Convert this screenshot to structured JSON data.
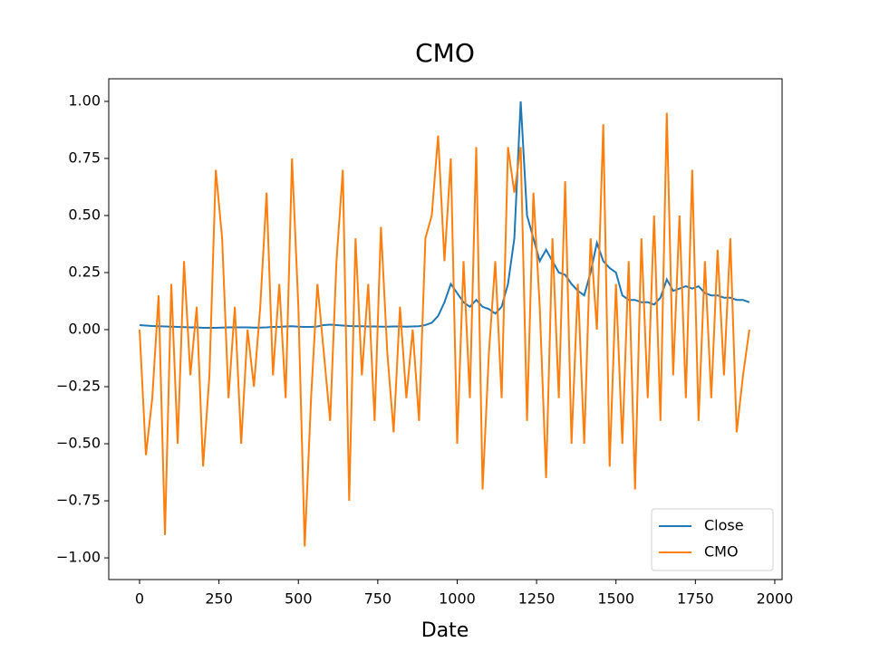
{
  "chart_data": {
    "type": "line",
    "title": "CMO",
    "x_label": "Date",
    "x": [
      0,
      20,
      40,
      60,
      80,
      100,
      120,
      140,
      160,
      180,
      200,
      220,
      240,
      260,
      280,
      300,
      320,
      340,
      360,
      380,
      400,
      420,
      440,
      460,
      480,
      500,
      520,
      540,
      560,
      580,
      600,
      620,
      640,
      660,
      680,
      700,
      720,
      740,
      760,
      780,
      800,
      820,
      840,
      860,
      880,
      900,
      920,
      940,
      960,
      980,
      1000,
      1020,
      1040,
      1060,
      1080,
      1100,
      1120,
      1140,
      1160,
      1180,
      1200,
      1220,
      1240,
      1260,
      1280,
      1300,
      1320,
      1340,
      1360,
      1380,
      1400,
      1420,
      1440,
      1460,
      1480,
      1500,
      1520,
      1540,
      1560,
      1580,
      1600,
      1620,
      1640,
      1660,
      1680,
      1700,
      1720,
      1740,
      1760,
      1780,
      1800,
      1820,
      1840,
      1860,
      1880,
      1900,
      1920
    ],
    "series": [
      {
        "name": "Close",
        "color": "#1f77b4",
        "values": [
          0.02,
          0.018,
          0.016,
          0.015,
          0.014,
          0.013,
          0.012,
          0.011,
          0.01,
          0.01,
          0.008,
          0.008,
          0.008,
          0.009,
          0.01,
          0.01,
          0.01,
          0.01,
          0.009,
          0.009,
          0.01,
          0.012,
          0.012,
          0.014,
          0.015,
          0.013,
          0.012,
          0.012,
          0.014,
          0.02,
          0.022,
          0.02,
          0.018,
          0.016,
          0.015,
          0.015,
          0.014,
          0.014,
          0.013,
          0.013,
          0.014,
          0.014,
          0.013,
          0.014,
          0.015,
          0.02,
          0.03,
          0.06,
          0.12,
          0.2,
          0.16,
          0.12,
          0.1,
          0.13,
          0.1,
          0.09,
          0.07,
          0.1,
          0.2,
          0.4,
          1.0,
          0.5,
          0.4,
          0.3,
          0.35,
          0.3,
          0.25,
          0.24,
          0.2,
          0.17,
          0.15,
          0.25,
          0.38,
          0.3,
          0.27,
          0.25,
          0.15,
          0.13,
          0.13,
          0.12,
          0.12,
          0.11,
          0.14,
          0.22,
          0.17,
          0.18,
          0.19,
          0.18,
          0.19,
          0.16,
          0.15,
          0.15,
          0.14,
          0.14,
          0.13,
          0.13,
          0.12
        ]
      },
      {
        "name": "CMO",
        "color": "#ff7f0e",
        "values": [
          0.0,
          -0.55,
          -0.3,
          0.15,
          -0.9,
          0.2,
          -0.5,
          0.3,
          -0.2,
          0.1,
          -0.6,
          -0.2,
          0.7,
          0.4,
          -0.3,
          0.1,
          -0.5,
          0.0,
          -0.25,
          0.1,
          0.6,
          -0.2,
          0.2,
          -0.3,
          0.75,
          0.1,
          -0.95,
          -0.3,
          0.2,
          -0.1,
          -0.4,
          0.3,
          0.7,
          -0.75,
          0.4,
          -0.2,
          0.2,
          -0.4,
          0.45,
          -0.1,
          -0.45,
          0.1,
          -0.3,
          0.0,
          -0.4,
          0.4,
          0.5,
          0.85,
          0.3,
          0.75,
          -0.5,
          0.3,
          -0.3,
          0.8,
          -0.7,
          -0.1,
          0.3,
          -0.3,
          0.8,
          0.6,
          0.8,
          -0.4,
          0.6,
          0.1,
          -0.65,
          0.4,
          -0.3,
          0.65,
          -0.5,
          0.2,
          -0.5,
          0.4,
          0.0,
          0.9,
          -0.6,
          0.2,
          -0.5,
          0.3,
          -0.7,
          0.4,
          -0.3,
          0.5,
          -0.4,
          0.95,
          -0.2,
          0.5,
          -0.3,
          0.7,
          -0.4,
          0.3,
          -0.3,
          0.35,
          -0.2,
          0.4,
          -0.45,
          -0.2,
          0.0
        ]
      }
    ],
    "xlim": [
      -97,
      2023
    ],
    "ylim": [
      -1.095,
      1.099
    ],
    "xticks": [
      0,
      250,
      500,
      750,
      1000,
      1250,
      1500,
      1750,
      2000
    ],
    "yticks": [
      {
        "value": -1,
        "label": "−1.00"
      },
      {
        "value": -0.75,
        "label": "−0.75"
      },
      {
        "value": -0.5,
        "label": "−0.50"
      },
      {
        "value": -0.25,
        "label": "−0.25"
      },
      {
        "value": 0,
        "label": "0.00"
      },
      {
        "value": 0.25,
        "label": "0.25"
      },
      {
        "value": 0.5,
        "label": "0.50"
      },
      {
        "value": 0.75,
        "label": "0.75"
      },
      {
        "value": 1,
        "label": "1.00"
      }
    ],
    "legend": "lower right"
  }
}
